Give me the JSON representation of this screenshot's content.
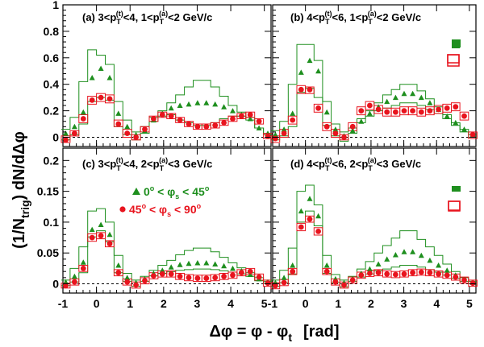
{
  "figure": {
    "ylabel_main": "(1/N",
    "ylabel_sub": "trig",
    "ylabel_rest": ") dN/dΔφ",
    "xlabel": "Δφ = φ - φ",
    "xlabel_sub": "t",
    "xlabel_unit": "[rad]"
  },
  "legend": {
    "inplane_label_prefix": "0",
    "inplane_label_mid": " < φ",
    "inplane_label_sub": "s",
    "inplane_label_suffix": " < 45",
    "outplane_label_prefix": "45",
    "outplane_label_mid": " < φ",
    "outplane_label_sub": "s",
    "outplane_label_suffix": " < 90",
    "degree": "o"
  },
  "colors": {
    "inplane": "#1e8f1e",
    "outplane": "#e8141e",
    "axis": "#000000"
  },
  "chart_data": [
    {
      "id": "a",
      "type": "scatter",
      "title": "(a) 3<p_T^(t)<4, 1<p_T^(a)<2 GeV/c",
      "title_parts": [
        "(a) 3<p",
        "T",
        "(t)",
        "<4, 1<p",
        "T",
        "(a)",
        "<2 GeV/c"
      ],
      "xlim": [
        -1.0,
        5.2
      ],
      "ylim": [
        -0.07,
        1.0
      ],
      "yticks": [
        "0",
        "0.2",
        "0.4",
        "0.6",
        "0.8",
        "1"
      ],
      "ytick_values": [
        0,
        0.2,
        0.4,
        0.6,
        0.8,
        1.0
      ],
      "xticks": [
        "-1",
        "0",
        "1",
        "2",
        "3",
        "4",
        "5"
      ],
      "xtick_values": [
        -1,
        0,
        1,
        2,
        3,
        4,
        5
      ],
      "x": [
        -0.916,
        -0.654,
        -0.393,
        -0.131,
        0.131,
        0.393,
        0.654,
        0.916,
        1.178,
        1.44,
        1.702,
        1.963,
        2.225,
        2.487,
        2.749,
        3.011,
        3.272,
        3.534,
        3.796,
        4.058,
        4.32,
        4.581,
        4.843,
        5.105
      ],
      "series": [
        {
          "marker": "triangle",
          "values": [
            0.03,
            0.08,
            0.19,
            0.45,
            0.52,
            0.45,
            0.18,
            0.08,
            0.02,
            0.05,
            0.13,
            0.18,
            0.22,
            0.24,
            0.25,
            0.26,
            0.26,
            0.25,
            0.23,
            0.2,
            0.17,
            0.14,
            0.07,
            0.03
          ]
        },
        {
          "marker": "circle",
          "values": [
            -0.02,
            0.03,
            0.14,
            0.28,
            0.3,
            0.29,
            0.1,
            0.03,
            0.0,
            0.06,
            0.14,
            0.17,
            0.16,
            0.13,
            0.1,
            0.08,
            0.08,
            0.09,
            0.11,
            0.14,
            0.16,
            0.17,
            0.12,
            0.01
          ]
        }
      ],
      "band": {
        "upper": [
          0.06,
          0.15,
          0.42,
          0.66,
          0.62,
          0.55,
          0.27,
          0.13,
          0.04,
          0.08,
          0.15,
          0.2,
          0.26,
          0.32,
          0.38,
          0.43,
          0.43,
          0.38,
          0.31,
          0.24,
          0.19,
          0.15,
          0.07,
          0.03
        ],
        "lower": [
          -0.02,
          0.02,
          0.1,
          0.27,
          0.3,
          0.28,
          0.08,
          0.02,
          -0.02,
          0.03,
          0.12,
          0.16,
          0.17,
          0.13,
          0.11,
          0.09,
          0.09,
          0.11,
          0.14,
          0.16,
          0.16,
          0.13,
          0.07,
          0.02
        ]
      },
      "outplane_box_upper": [
        0.01,
        0.05,
        0.17,
        0.31,
        0.33,
        0.32,
        0.13,
        0.06,
        0.02,
        0.08,
        0.16,
        0.19,
        0.18,
        0.15,
        0.12,
        0.1,
        0.1,
        0.11,
        0.13,
        0.16,
        0.18,
        0.19,
        0.14,
        0.03
      ],
      "outplane_box_lower": [
        -0.04,
        0.01,
        0.11,
        0.25,
        0.27,
        0.26,
        0.08,
        0.0,
        -0.02,
        0.04,
        0.12,
        0.15,
        0.14,
        0.11,
        0.08,
        0.06,
        0.06,
        0.07,
        0.09,
        0.12,
        0.14,
        0.15,
        0.1,
        -0.01
      ]
    },
    {
      "id": "b",
      "type": "scatter",
      "title": "(b) 4<p_T^(t)<6, 1<p_T^(a)<2 GeV/c",
      "title_parts": [
        "(b) 4<p",
        "T",
        "(t)",
        "<6, 1<p",
        "T",
        "(a)",
        "<2 GeV/c"
      ],
      "xlim": [
        -1.0,
        5.2
      ],
      "ylim": [
        -0.07,
        1.0
      ],
      "yticks": [],
      "ytick_values": [
        0,
        0.2,
        0.4,
        0.6,
        0.8,
        1.0
      ],
      "xticks": [
        "-1",
        "0",
        "1",
        "2",
        "3",
        "4",
        "5"
      ],
      "xtick_values": [
        -1,
        0,
        1,
        2,
        3,
        4,
        5
      ],
      "x": [
        -0.916,
        -0.654,
        -0.393,
        -0.131,
        0.131,
        0.393,
        0.654,
        0.916,
        1.178,
        1.44,
        1.702,
        1.963,
        2.225,
        2.487,
        2.749,
        3.011,
        3.272,
        3.534,
        3.796,
        4.058,
        4.32,
        4.581,
        4.843,
        5.105
      ],
      "series": [
        {
          "marker": "triangle",
          "values": [
            0.02,
            0.06,
            0.18,
            0.49,
            0.58,
            0.5,
            0.19,
            0.06,
            0.01,
            0.05,
            0.12,
            0.18,
            0.23,
            0.27,
            0.3,
            0.33,
            0.33,
            0.3,
            0.26,
            0.21,
            0.16,
            0.11,
            0.06,
            0.02
          ]
        },
        {
          "marker": "circle",
          "values": [
            -0.01,
            0.03,
            0.13,
            0.36,
            0.36,
            0.22,
            0.08,
            0.03,
            0.0,
            0.08,
            0.2,
            0.24,
            0.21,
            0.19,
            0.19,
            0.2,
            0.2,
            0.19,
            0.2,
            0.21,
            0.22,
            0.23,
            0.16,
            0.02
          ]
        }
      ],
      "band": {
        "upper": [
          0.05,
          0.12,
          0.4,
          0.7,
          0.7,
          0.58,
          0.27,
          0.1,
          0.04,
          0.07,
          0.14,
          0.2,
          0.26,
          0.32,
          0.36,
          0.4,
          0.4,
          0.35,
          0.29,
          0.23,
          0.17,
          0.11,
          0.06,
          0.02
        ],
        "lower": [
          -0.02,
          0.01,
          0.08,
          0.34,
          0.37,
          0.3,
          0.09,
          0.01,
          -0.03,
          0.03,
          0.11,
          0.16,
          0.2,
          0.22,
          0.24,
          0.26,
          0.26,
          0.24,
          0.21,
          0.18,
          0.14,
          0.09,
          0.04,
          0.0
        ]
      },
      "outplane_box_upper": [
        0.01,
        0.06,
        0.16,
        0.39,
        0.38,
        0.25,
        0.11,
        0.06,
        0.02,
        0.11,
        0.23,
        0.27,
        0.24,
        0.22,
        0.22,
        0.23,
        0.23,
        0.22,
        0.23,
        0.24,
        0.25,
        0.26,
        0.19,
        0.04
      ],
      "outplane_box_lower": [
        -0.04,
        0.0,
        0.1,
        0.33,
        0.33,
        0.19,
        0.05,
        0.0,
        -0.02,
        0.05,
        0.17,
        0.21,
        0.18,
        0.16,
        0.16,
        0.17,
        0.17,
        0.16,
        0.17,
        0.18,
        0.19,
        0.2,
        0.13,
        -0.01
      ]
    },
    {
      "id": "c",
      "type": "scatter",
      "title": "(c) 3<p_T^(t)<4, 2<p_T^(a)<3 GeV/c",
      "title_parts": [
        "(c) 3<p",
        "T",
        "(t)",
        "<4, 2<p",
        "T",
        "(a)",
        "<3 GeV/c"
      ],
      "xlim": [
        -1.0,
        5.2
      ],
      "ylim": [
        -0.015,
        0.22
      ],
      "yticks": [
        "0",
        "0.05",
        "0.1",
        "0.15",
        "0.2"
      ],
      "ytick_values": [
        0,
        0.05,
        0.1,
        0.15,
        0.2
      ],
      "xticks": [
        "-1",
        "0",
        "1",
        "2",
        "3",
        "4",
        "5"
      ],
      "xtick_values": [
        -1,
        0,
        1,
        2,
        3,
        4,
        5
      ],
      "x": [
        -0.916,
        -0.654,
        -0.393,
        -0.131,
        0.131,
        0.393,
        0.654,
        0.916,
        1.178,
        1.44,
        1.702,
        1.963,
        2.225,
        2.487,
        2.749,
        3.011,
        3.272,
        3.534,
        3.796,
        4.058,
        4.32,
        4.581,
        4.843,
        5.105
      ],
      "series": [
        {
          "marker": "triangle",
          "values": [
            0.003,
            0.012,
            0.035,
            0.088,
            0.096,
            0.08,
            0.03,
            0.01,
            0.002,
            0.008,
            0.017,
            0.022,
            0.027,
            0.031,
            0.033,
            0.034,
            0.034,
            0.032,
            0.029,
            0.025,
            0.021,
            0.015,
            0.008,
            0.003
          ]
        },
        {
          "marker": "circle",
          "values": [
            -0.003,
            0.003,
            0.025,
            0.075,
            0.078,
            0.065,
            0.018,
            0.003,
            -0.002,
            0.005,
            0.013,
            0.016,
            0.016,
            0.012,
            0.01,
            0.009,
            0.009,
            0.01,
            0.012,
            0.014,
            0.018,
            0.02,
            0.011,
            0.001
          ]
        }
      ],
      "band": {
        "upper": [
          0.006,
          0.025,
          0.06,
          0.118,
          0.122,
          0.1,
          0.046,
          0.017,
          0.006,
          0.012,
          0.022,
          0.03,
          0.038,
          0.047,
          0.054,
          0.058,
          0.058,
          0.052,
          0.043,
          0.034,
          0.026,
          0.018,
          0.01,
          0.004
        ],
        "lower": [
          -0.003,
          0.003,
          0.018,
          0.076,
          0.086,
          0.068,
          0.018,
          0.004,
          -0.004,
          0.004,
          0.013,
          0.017,
          0.02,
          0.022,
          0.023,
          0.024,
          0.024,
          0.023,
          0.021,
          0.019,
          0.016,
          0.012,
          0.005,
          0.001
        ]
      },
      "outplane_box_upper": [
        0.001,
        0.008,
        0.03,
        0.081,
        0.083,
        0.07,
        0.023,
        0.008,
        0.003,
        0.01,
        0.018,
        0.021,
        0.021,
        0.017,
        0.015,
        0.014,
        0.014,
        0.015,
        0.017,
        0.019,
        0.023,
        0.025,
        0.016,
        0.006
      ],
      "outplane_box_lower": [
        -0.007,
        -0.002,
        0.02,
        0.069,
        0.073,
        0.06,
        0.013,
        -0.002,
        -0.007,
        0.0,
        0.008,
        0.011,
        0.011,
        0.007,
        0.005,
        0.004,
        0.004,
        0.005,
        0.007,
        0.009,
        0.013,
        0.015,
        0.006,
        -0.004
      ]
    },
    {
      "id": "d",
      "type": "scatter",
      "title": "(d) 4<p_T^(t)<6, 2<p_T^(a)<3 GeV/c",
      "title_parts": [
        "(d) 4<p",
        "T",
        "(t)",
        "<6, 2<p",
        "T",
        "(a)",
        "<3 GeV/c"
      ],
      "xlim": [
        -1.0,
        5.2
      ],
      "ylim": [
        -0.015,
        0.22
      ],
      "yticks": [],
      "ytick_values": [
        0,
        0.05,
        0.1,
        0.15,
        0.2
      ],
      "xticks": [
        "-1",
        "0",
        "1",
        "2",
        "3",
        "4",
        "5"
      ],
      "xtick_values": [
        -1,
        0,
        1,
        2,
        3,
        4,
        5
      ],
      "x": [
        -0.916,
        -0.654,
        -0.393,
        -0.131,
        0.131,
        0.393,
        0.654,
        0.916,
        1.178,
        1.44,
        1.702,
        1.963,
        2.225,
        2.487,
        2.749,
        3.011,
        3.272,
        3.534,
        3.796,
        4.058,
        4.32,
        4.581,
        4.843,
        5.105
      ],
      "series": [
        {
          "marker": "triangle",
          "values": [
            0.002,
            0.01,
            0.03,
            0.118,
            0.138,
            0.11,
            0.03,
            0.008,
            0.002,
            0.008,
            0.017,
            0.024,
            0.032,
            0.04,
            0.047,
            0.052,
            0.052,
            0.046,
            0.038,
            0.03,
            0.022,
            0.014,
            0.007,
            0.002
          ]
        },
        {
          "marker": "circle",
          "values": [
            -0.003,
            0.002,
            0.02,
            0.092,
            0.105,
            0.085,
            0.02,
            0.003,
            -0.002,
            0.006,
            0.014,
            0.017,
            0.018,
            0.016,
            0.015,
            0.016,
            0.018,
            0.019,
            0.018,
            0.016,
            0.014,
            0.011,
            0.006,
            0.001
          ]
        }
      ],
      "band": {
        "upper": [
          0.006,
          0.022,
          0.058,
          0.15,
          0.16,
          0.128,
          0.046,
          0.015,
          0.006,
          0.012,
          0.024,
          0.036,
          0.05,
          0.062,
          0.074,
          0.086,
          0.086,
          0.072,
          0.06,
          0.046,
          0.032,
          0.02,
          0.01,
          0.004
        ],
        "lower": [
          -0.004,
          0.002,
          0.016,
          0.1,
          0.118,
          0.094,
          0.017,
          0.002,
          -0.005,
          0.004,
          0.011,
          0.016,
          0.021,
          0.024,
          0.027,
          0.03,
          0.03,
          0.027,
          0.023,
          0.019,
          0.014,
          0.009,
          0.004,
          0.0
        ]
      },
      "outplane_box_upper": [
        0.002,
        0.007,
        0.025,
        0.098,
        0.11,
        0.091,
        0.025,
        0.008,
        0.003,
        0.011,
        0.019,
        0.022,
        0.023,
        0.021,
        0.02,
        0.021,
        0.023,
        0.024,
        0.023,
        0.021,
        0.019,
        0.016,
        0.011,
        0.006
      ],
      "outplane_box_lower": [
        -0.008,
        -0.003,
        0.015,
        0.086,
        0.1,
        0.079,
        0.015,
        -0.002,
        -0.007,
        0.001,
        0.009,
        0.012,
        0.013,
        0.011,
        0.01,
        0.011,
        0.013,
        0.014,
        0.013,
        0.011,
        0.009,
        0.006,
        0.001,
        -0.004
      ]
    }
  ]
}
